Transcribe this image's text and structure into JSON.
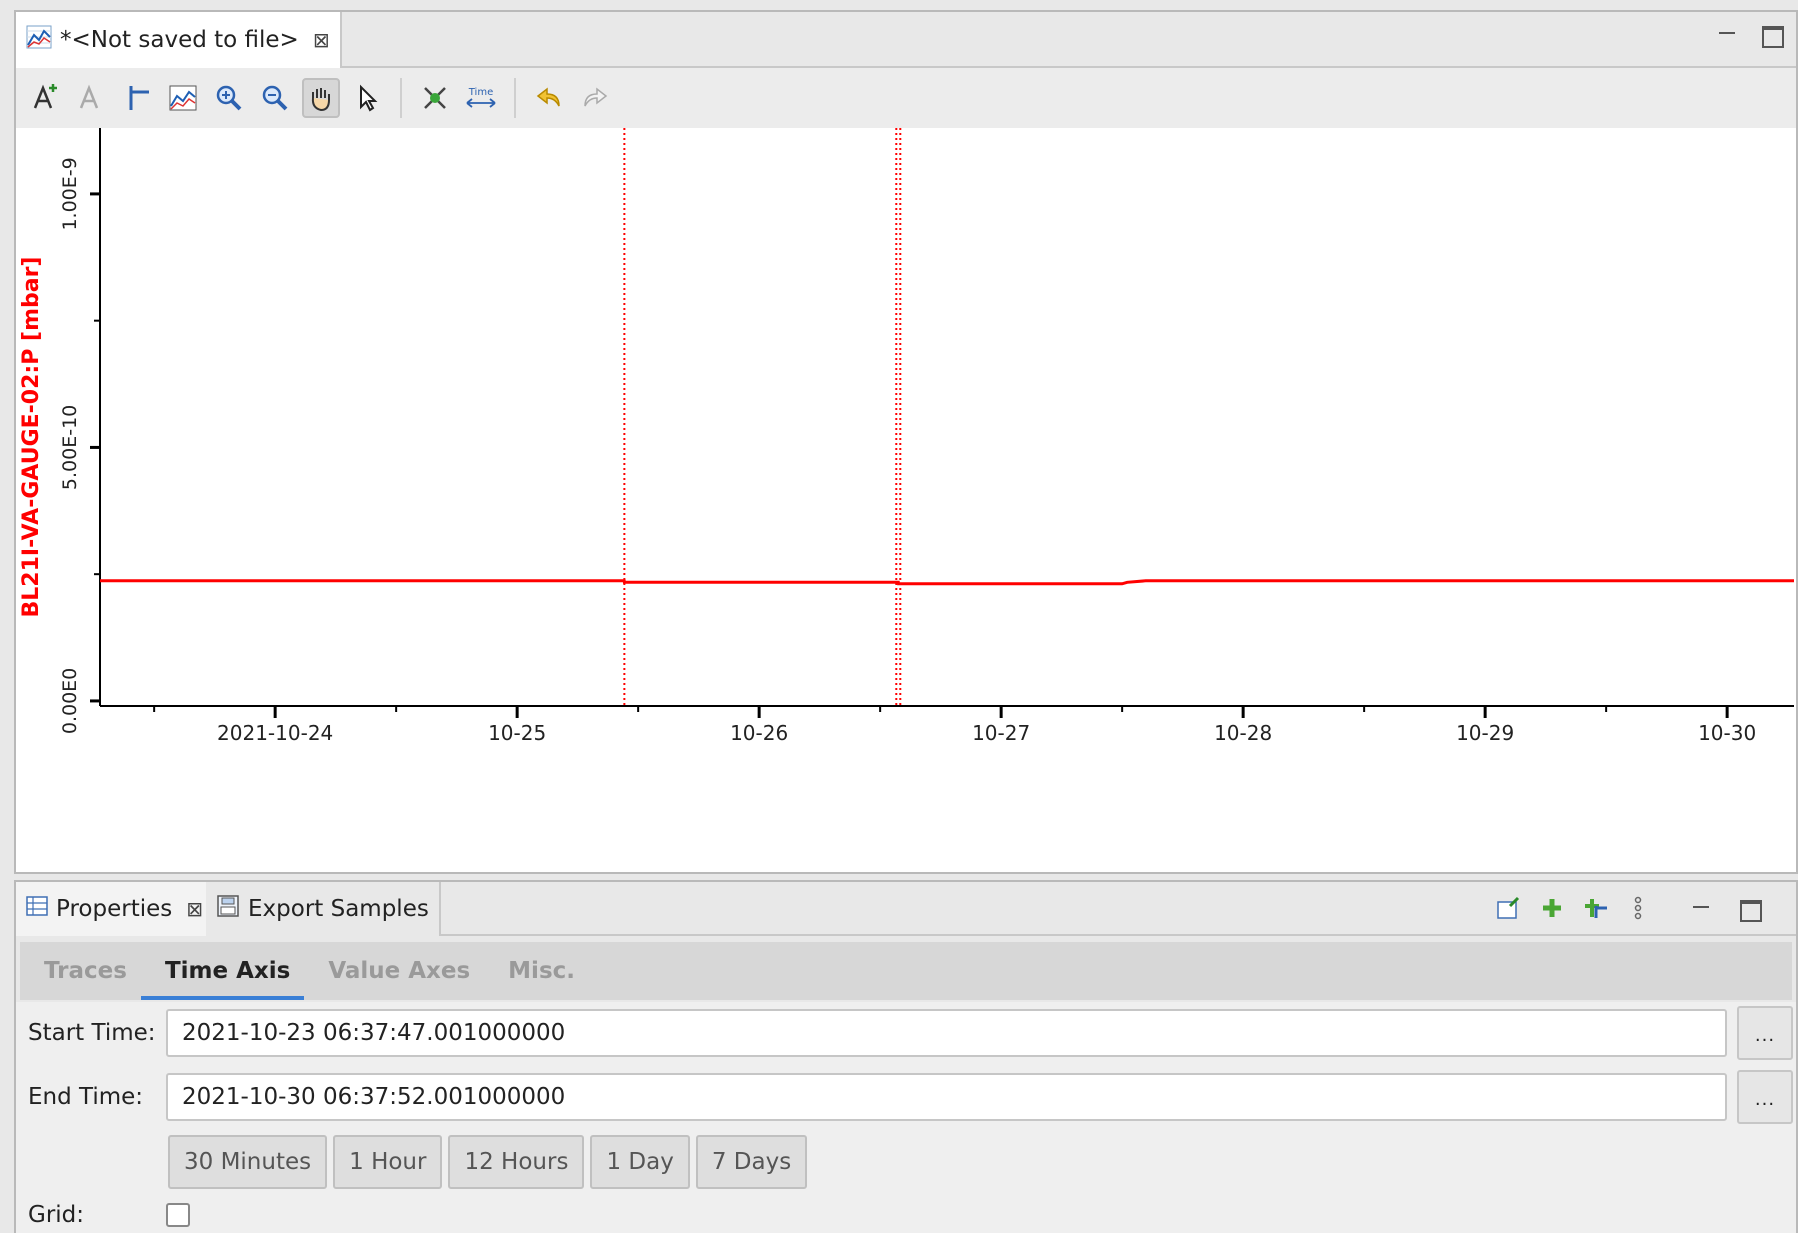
{
  "editor": {
    "tab_title": "*<Not saved to file>",
    "close_glyph": "⊠"
  },
  "toolbar": {
    "buttons": [
      "add-annotation-icon",
      "edit-annotation-icon",
      "crosshair-icon",
      "stagger-icon",
      "zoom-in-icon",
      "zoom-out-icon",
      "pan-icon",
      "pointer-icon",
      "scroll-icon",
      "time-config-icon",
      "undo-icon",
      "redo-icon"
    ],
    "active": "pan-icon",
    "time_label": "Time"
  },
  "colors": {
    "trace": "#ff0000",
    "accent": "#3a7fd6"
  },
  "chart_data": {
    "type": "line",
    "ylabel": "BL21I-VA-GAUGE-02:P [mbar]",
    "y_ticks": [
      "0.00E0",
      "5.00E-10",
      "1.00E-9"
    ],
    "y_tick_values": [
      0,
      5e-10,
      1e-09
    ],
    "ylim": [
      -1e-11,
      1.13e-09
    ],
    "x_ticks": [
      "2021-10-24",
      "10-25",
      "10-26",
      "10-27",
      "10-28",
      "10-29",
      "10-30"
    ],
    "xlim": [
      "2021-10-23 06:37:47",
      "2021-10-30 06:37:52"
    ],
    "grid": false,
    "series": [
      {
        "color": "#ff0000",
        "x": [
          "2021-10-23 06:37:47",
          "2021-10-25 10:37",
          "2021-10-25 10:38",
          "2021-10-26 13:48",
          "2021-10-26 13:49",
          "2021-10-27 12:00",
          "2021-10-27 12:30",
          "2021-10-27 14:20",
          "2021-10-30 06:37:52"
        ],
        "y": [
          2.37e-10,
          2.37e-10,
          2.34e-10,
          2.34e-10,
          2.31e-10,
          2.31e-10,
          2.34e-10,
          2.37e-10,
          2.37e-10
        ]
      }
    ],
    "markers": [
      {
        "x": "2021-10-25 10:38",
        "style": "dotted"
      },
      {
        "x": "2021-10-26 13:48",
        "style": "dotted-double"
      }
    ]
  },
  "props": {
    "tab_properties": "Properties",
    "tab_export": "Export Samples",
    "subtabs": [
      "Traces",
      "Time Axis",
      "Value Axes",
      "Misc."
    ],
    "selected_subtab": "Time Axis",
    "start_label": "Start Time:",
    "start_value": "2021-10-23 06:37:47.001000000",
    "end_label": "End Time:",
    "end_value": "2021-10-30 06:37:52.001000000",
    "ellipsis": "...",
    "range_buttons": [
      "30 Minutes",
      "1 Hour",
      "12 Hours",
      "1 Day",
      "7 Days"
    ],
    "grid_label": "Grid:",
    "grid_checked": false
  }
}
